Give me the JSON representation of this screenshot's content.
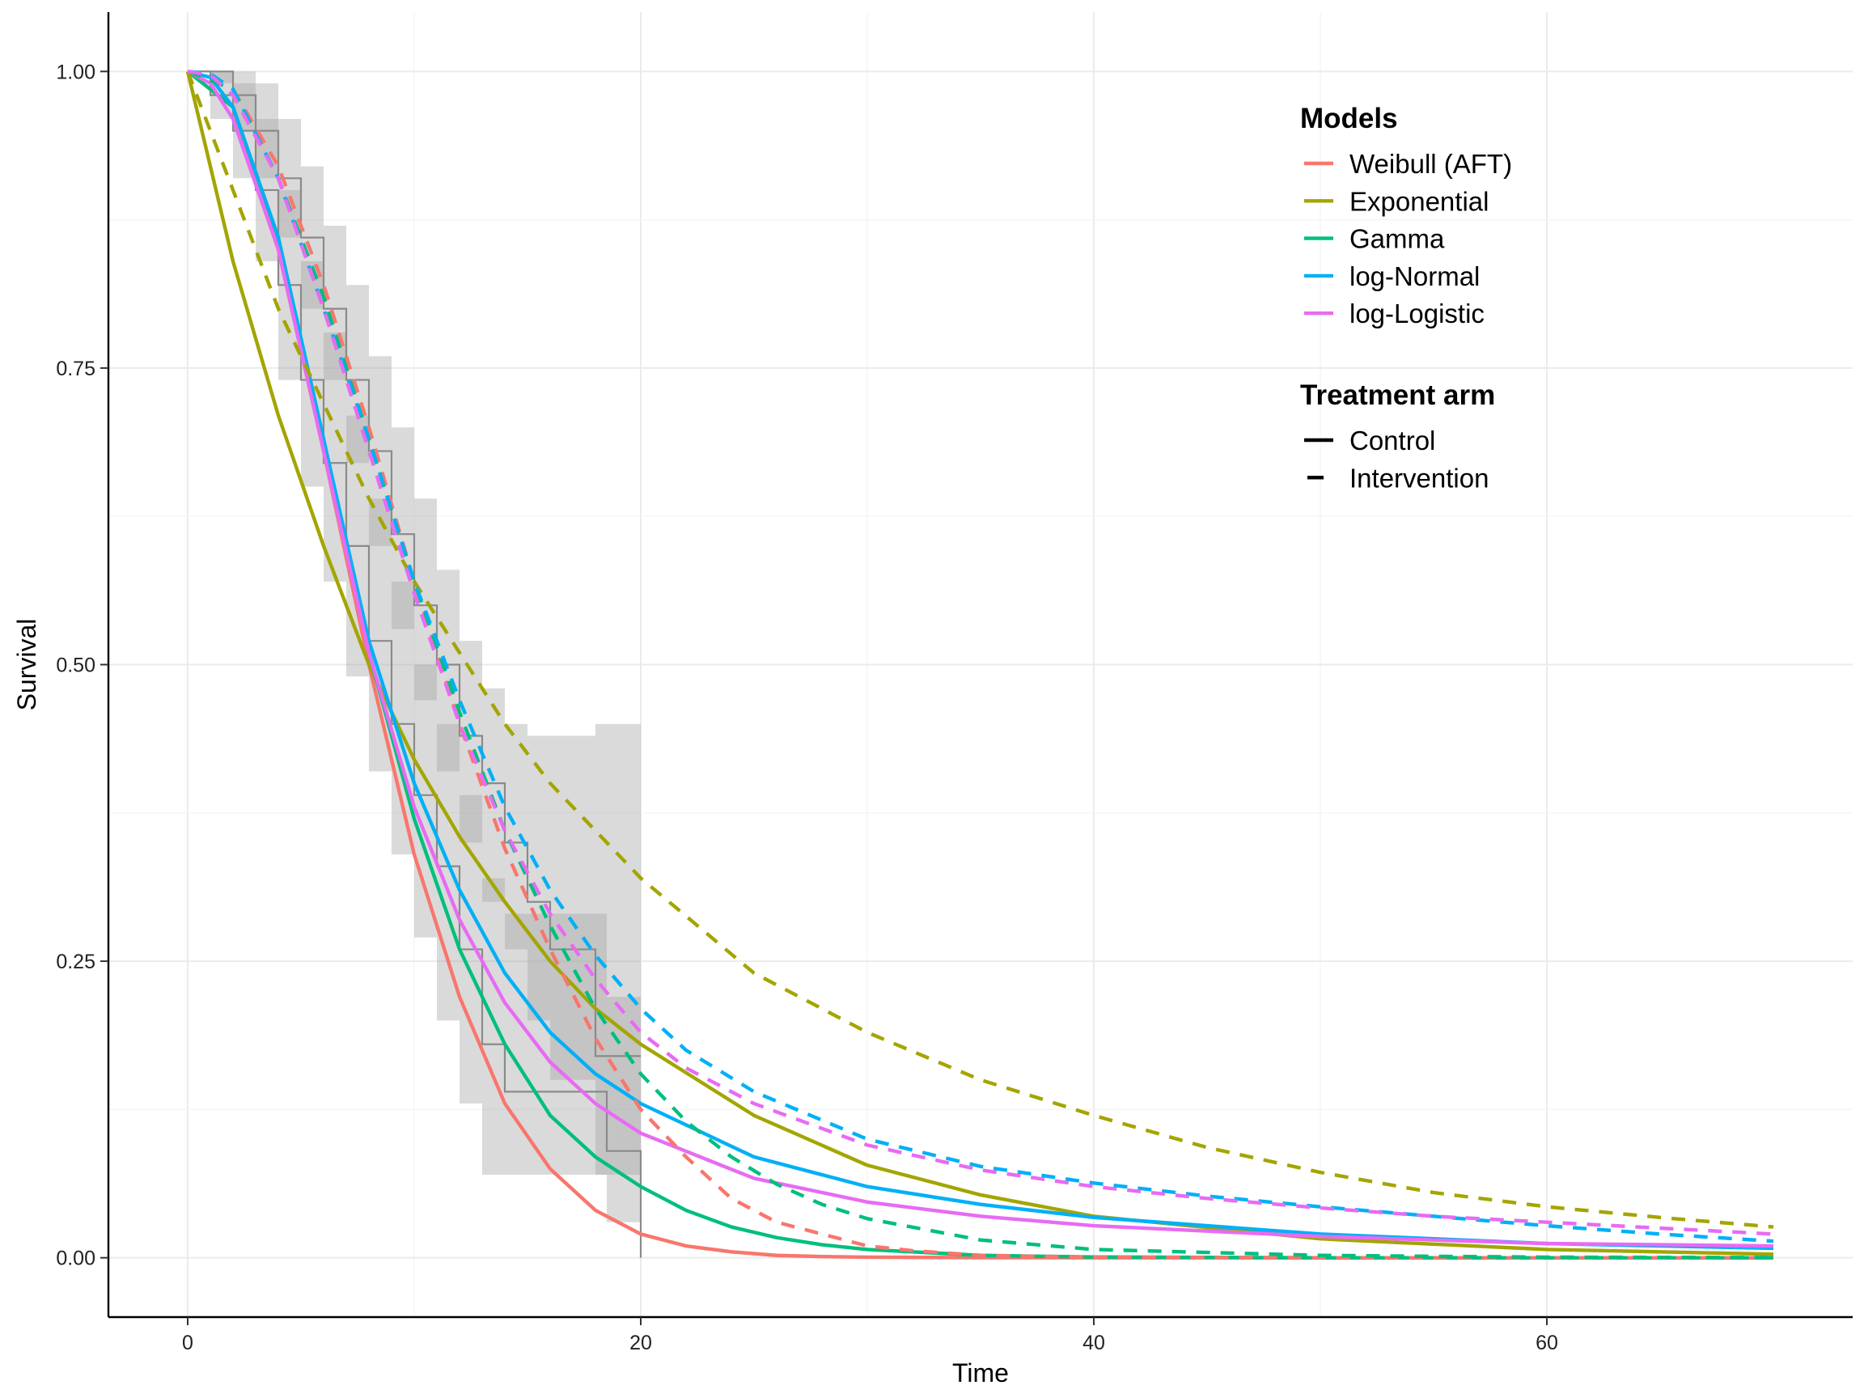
{
  "chart_data": {
    "type": "line",
    "title": "",
    "xlabel": "Time",
    "ylabel": "Survival",
    "xlim": [
      -3.5,
      73.5
    ],
    "ylim": [
      -0.05,
      1.05
    ],
    "x_ticks": [
      0,
      20,
      40,
      60
    ],
    "x_tick_labels": [
      "0",
      "20",
      "40",
      "60"
    ],
    "y_ticks": [
      0,
      0.25,
      0.5,
      0.75,
      1.0
    ],
    "y_tick_labels": [
      "0.00",
      "0.25",
      "0.50",
      "0.75",
      "1.00"
    ],
    "grid": true,
    "legend_position": "top-right",
    "legend": {
      "models_title": "Models",
      "models": [
        {
          "label": "Weibull (AFT)",
          "color": "#F8766D"
        },
        {
          "label": "Exponential",
          "color": "#A3A500"
        },
        {
          "label": "Gamma",
          "color": "#00BF7D"
        },
        {
          "label": "log-Normal",
          "color": "#00B0F6"
        },
        {
          "label": "log-Logistic",
          "color": "#E76BF3"
        }
      ],
      "arms_title": "Treatment arm",
      "arms": [
        {
          "label": "Control",
          "linetype": "solid"
        },
        {
          "label": "Intervention",
          "linetype": "dashed"
        }
      ]
    },
    "series": [
      {
        "model": "Weibull (AFT)",
        "arm": "Control",
        "color": "#F8766D",
        "x": [
          0,
          2,
          4,
          6,
          8,
          10,
          12,
          14,
          16,
          18,
          20,
          22,
          24,
          26,
          28,
          30,
          35,
          40,
          50,
          60,
          70
        ],
        "y": [
          1.0,
          0.97,
          0.85,
          0.68,
          0.5,
          0.34,
          0.22,
          0.13,
          0.075,
          0.04,
          0.02,
          0.01,
          0.005,
          0.002,
          0.001,
          0.0005,
          0.0001,
          0,
          0,
          0,
          0
        ]
      },
      {
        "model": "Exponential",
        "arm": "Control",
        "color": "#A3A500",
        "x": [
          0,
          2,
          4,
          6,
          8,
          10,
          12,
          14,
          16,
          18,
          20,
          25,
          30,
          35,
          40,
          50,
          60,
          70
        ],
        "y": [
          1.0,
          0.84,
          0.71,
          0.6,
          0.5,
          0.42,
          0.355,
          0.3,
          0.25,
          0.21,
          0.18,
          0.12,
          0.078,
          0.053,
          0.035,
          0.016,
          0.007,
          0.003
        ]
      },
      {
        "model": "Gamma",
        "arm": "Control",
        "color": "#00BF7D",
        "x": [
          0,
          2,
          4,
          6,
          8,
          10,
          12,
          14,
          16,
          18,
          20,
          22,
          24,
          26,
          28,
          30,
          35,
          40,
          50,
          60,
          70
        ],
        "y": [
          1.0,
          0.97,
          0.86,
          0.69,
          0.51,
          0.37,
          0.26,
          0.18,
          0.12,
          0.085,
          0.06,
          0.04,
          0.026,
          0.017,
          0.011,
          0.007,
          0.002,
          0.0007,
          0,
          0,
          0
        ]
      },
      {
        "model": "log-Normal",
        "arm": "Control",
        "color": "#00B0F6",
        "x": [
          0,
          1,
          2,
          4,
          6,
          8,
          10,
          12,
          14,
          16,
          18,
          20,
          25,
          30,
          35,
          40,
          50,
          60,
          70
        ],
        "y": [
          1.0,
          0.995,
          0.97,
          0.86,
          0.69,
          0.52,
          0.4,
          0.31,
          0.24,
          0.19,
          0.155,
          0.13,
          0.085,
          0.06,
          0.045,
          0.034,
          0.02,
          0.012,
          0.008
        ]
      },
      {
        "model": "log-Logistic",
        "arm": "Control",
        "color": "#E76BF3",
        "x": [
          0,
          1,
          2,
          4,
          6,
          8,
          10,
          12,
          14,
          16,
          18,
          20,
          25,
          30,
          35,
          40,
          50,
          60,
          70
        ],
        "y": [
          1.0,
          0.99,
          0.96,
          0.85,
          0.68,
          0.51,
          0.38,
          0.285,
          0.215,
          0.165,
          0.13,
          0.105,
          0.067,
          0.047,
          0.035,
          0.027,
          0.018,
          0.012,
          0.01
        ]
      },
      {
        "model": "Weibull (AFT)",
        "arm": "Intervention",
        "color": "#F8766D",
        "x": [
          0,
          2,
          4,
          6,
          8,
          10,
          12,
          14,
          16,
          18,
          20,
          22,
          24,
          26,
          28,
          30,
          32,
          35,
          40,
          50,
          60,
          70
        ],
        "y": [
          1.0,
          0.985,
          0.92,
          0.82,
          0.7,
          0.57,
          0.45,
          0.345,
          0.26,
          0.185,
          0.125,
          0.085,
          0.05,
          0.03,
          0.02,
          0.01,
          0.006,
          0.002,
          0.0005,
          0,
          0,
          0
        ]
      },
      {
        "model": "Exponential",
        "arm": "Intervention",
        "color": "#A3A500",
        "x": [
          0,
          2,
          4,
          6,
          8,
          10,
          12,
          14,
          16,
          18,
          20,
          25,
          30,
          35,
          40,
          45,
          50,
          55,
          60,
          65,
          70
        ],
        "y": [
          1.0,
          0.9,
          0.8,
          0.72,
          0.64,
          0.57,
          0.51,
          0.45,
          0.4,
          0.36,
          0.32,
          0.24,
          0.19,
          0.15,
          0.12,
          0.093,
          0.072,
          0.055,
          0.043,
          0.034,
          0.026
        ]
      },
      {
        "model": "Gamma",
        "arm": "Intervention",
        "color": "#00BF7D",
        "x": [
          0,
          2,
          4,
          6,
          8,
          10,
          12,
          14,
          16,
          18,
          20,
          22,
          24,
          26,
          28,
          30,
          35,
          40,
          50,
          60,
          70
        ],
        "y": [
          1.0,
          0.985,
          0.91,
          0.81,
          0.69,
          0.57,
          0.46,
          0.36,
          0.28,
          0.21,
          0.155,
          0.115,
          0.085,
          0.062,
          0.045,
          0.033,
          0.015,
          0.007,
          0.002,
          0.0005,
          0.0002
        ]
      },
      {
        "model": "log-Normal",
        "arm": "Intervention",
        "color": "#00B0F6",
        "x": [
          0,
          1,
          2,
          4,
          6,
          8,
          10,
          12,
          14,
          16,
          18,
          20,
          22,
          25,
          30,
          35,
          40,
          45,
          50,
          55,
          60,
          65,
          70
        ],
        "y": [
          1.0,
          0.998,
          0.985,
          0.91,
          0.8,
          0.69,
          0.57,
          0.47,
          0.38,
          0.31,
          0.255,
          0.21,
          0.175,
          0.14,
          0.1,
          0.077,
          0.063,
          0.052,
          0.043,
          0.035,
          0.027,
          0.02,
          0.014
        ]
      },
      {
        "model": "log-Logistic",
        "arm": "Intervention",
        "color": "#E76BF3",
        "x": [
          0,
          1,
          2,
          4,
          6,
          8,
          10,
          12,
          14,
          16,
          18,
          20,
          22,
          25,
          30,
          35,
          40,
          45,
          50,
          55,
          60,
          65,
          70
        ],
        "y": [
          1.0,
          0.997,
          0.98,
          0.91,
          0.8,
          0.68,
          0.56,
          0.45,
          0.36,
          0.29,
          0.235,
          0.19,
          0.16,
          0.13,
          0.095,
          0.074,
          0.06,
          0.05,
          0.042,
          0.035,
          0.03,
          0.025,
          0.02
        ]
      }
    ],
    "km_control": {
      "x": [
        0,
        1,
        2,
        3,
        4,
        5,
        6,
        7,
        8,
        9,
        10,
        11,
        12,
        13,
        14,
        16,
        18,
        18.5,
        20
      ],
      "y": [
        1.0,
        0.98,
        0.95,
        0.9,
        0.82,
        0.74,
        0.67,
        0.6,
        0.52,
        0.45,
        0.39,
        0.33,
        0.26,
        0.18,
        0.14,
        0.14,
        0.14,
        0.09,
        0.0
      ],
      "lower": [
        1.0,
        0.96,
        0.91,
        0.84,
        0.74,
        0.65,
        0.57,
        0.49,
        0.41,
        0.34,
        0.27,
        0.2,
        0.13,
        0.07,
        0.07,
        0.07,
        0.07,
        0.03,
        0.03
      ],
      "upper": [
        1.0,
        1.0,
        0.99,
        0.96,
        0.9,
        0.84,
        0.78,
        0.71,
        0.64,
        0.57,
        0.5,
        0.45,
        0.39,
        0.32,
        0.29,
        0.29,
        0.29,
        0.22,
        0.22
      ]
    },
    "km_intervention": {
      "x": [
        0,
        1,
        2,
        3,
        4,
        5,
        6,
        7,
        8,
        9,
        10,
        11,
        12,
        13,
        14,
        15,
        16,
        17,
        18,
        20
      ],
      "y": [
        1.0,
        1.0,
        0.98,
        0.95,
        0.91,
        0.86,
        0.8,
        0.74,
        0.68,
        0.61,
        0.55,
        0.5,
        0.44,
        0.4,
        0.35,
        0.3,
        0.26,
        0.26,
        0.17,
        0.17
      ],
      "lower": [
        1.0,
        0.99,
        0.95,
        0.91,
        0.86,
        0.8,
        0.74,
        0.67,
        0.6,
        0.53,
        0.47,
        0.41,
        0.35,
        0.3,
        0.26,
        0.2,
        0.15,
        0.15,
        0.07,
        0.07
      ],
      "upper": [
        1.0,
        1.0,
        1.0,
        0.99,
        0.96,
        0.92,
        0.87,
        0.82,
        0.76,
        0.7,
        0.64,
        0.58,
        0.52,
        0.48,
        0.45,
        0.44,
        0.44,
        0.44,
        0.45,
        0.45
      ]
    }
  }
}
